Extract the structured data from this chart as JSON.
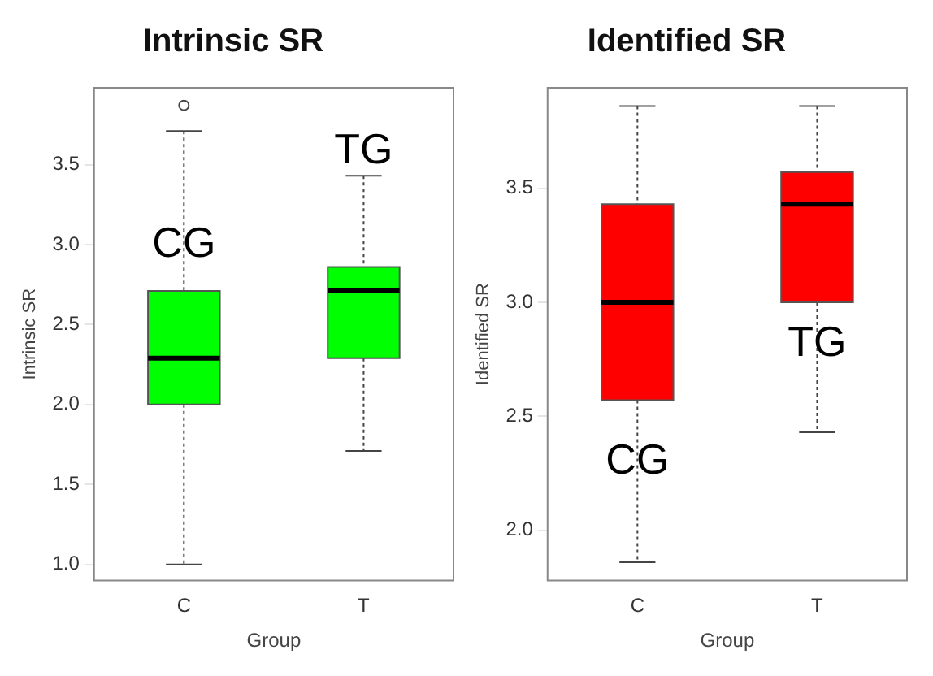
{
  "chart_data": [
    {
      "type": "box",
      "title": "Intrinsic SR",
      "xlabel": "Group",
      "ylabel": "Intrinsic SR",
      "categories": [
        "C",
        "T"
      ],
      "color": "#00ff00",
      "grid": false,
      "ylim": [
        0.9,
        3.98
      ],
      "yticks": [
        {
          "value": 1,
          "label": "1.0"
        },
        1.5,
        {
          "value": 2,
          "label": "2.0"
        },
        2.5,
        {
          "value": 3,
          "label": "3.0"
        },
        3.5
      ],
      "boxes": [
        {
          "low": 1.0,
          "q1": 2.0,
          "median": 2.29,
          "q3": 2.71,
          "high": 3.71,
          "outliers": [
            3.87
          ]
        },
        {
          "low": 1.71,
          "q1": 2.29,
          "median": 2.71,
          "q3": 2.86,
          "high": 3.43
        }
      ],
      "annotations": [
        "CG",
        "TG"
      ]
    },
    {
      "type": "box",
      "title": "Identified SR",
      "xlabel": "Group",
      "ylabel": "Identified SR",
      "categories": [
        "C",
        "T"
      ],
      "color": "#ff0000",
      "grid": false,
      "ylim": [
        1.78,
        3.94
      ],
      "yticks": [
        {
          "value": 2,
          "label": "2.0"
        },
        2.5,
        {
          "value": 3,
          "label": "3.0"
        },
        3.5
      ],
      "boxes": [
        {
          "low": 1.86,
          "q1": 2.57,
          "median": 3.0,
          "q3": 3.43,
          "high": 3.86
        },
        {
          "low": 2.43,
          "q1": 3.0,
          "median": 3.43,
          "q3": 3.57,
          "high": 3.86
        }
      ],
      "annotations": [
        "CG",
        "TG"
      ]
    }
  ]
}
